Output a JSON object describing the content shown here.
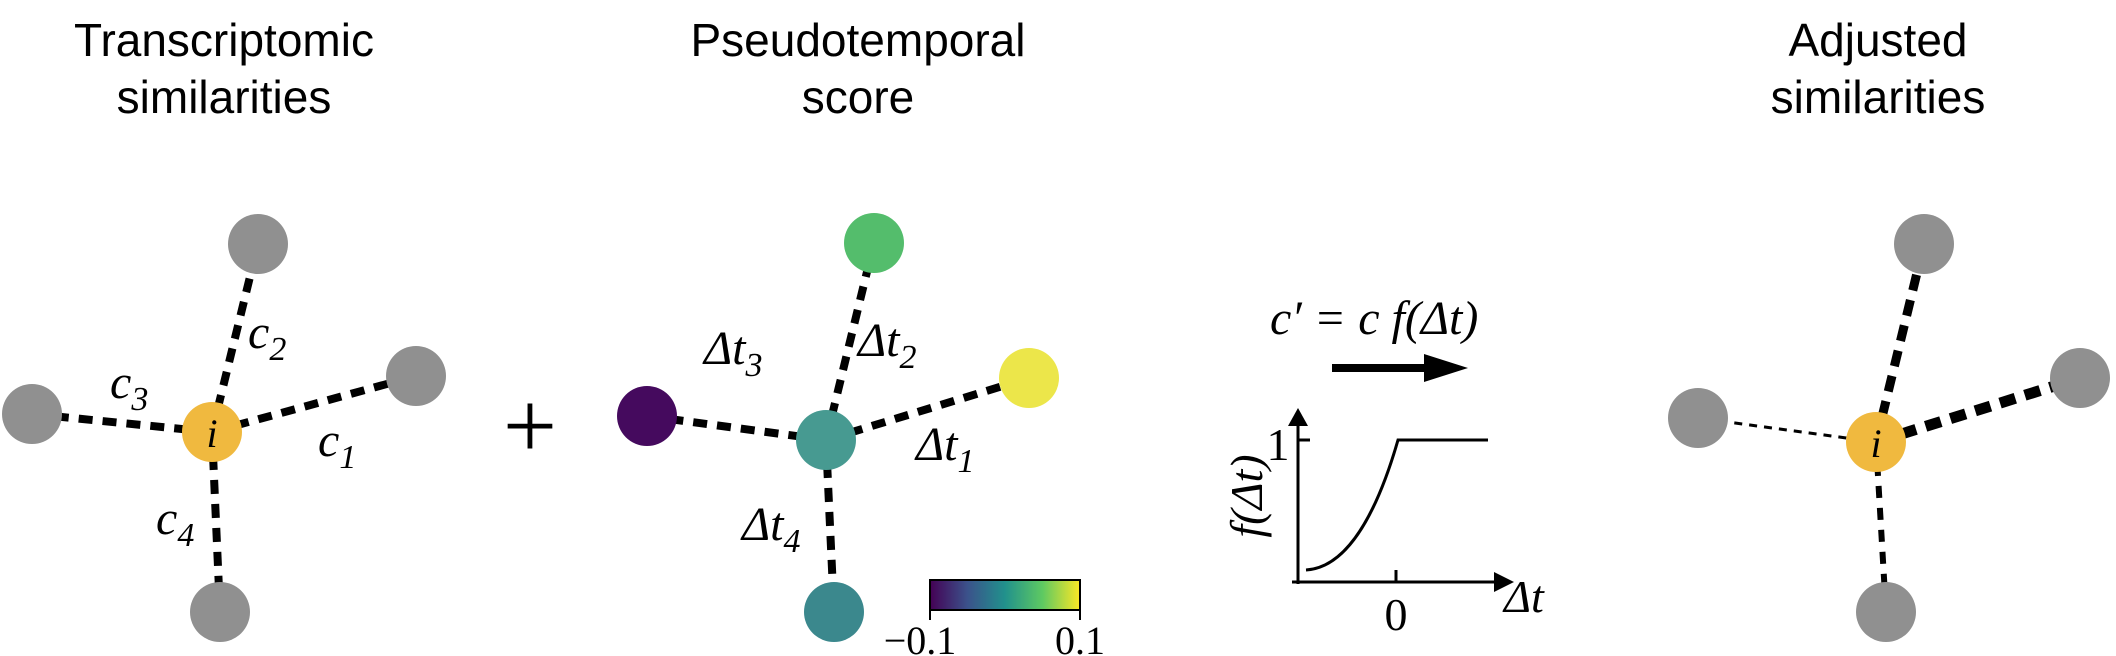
{
  "panels": {
    "transcriptomic": {
      "title_line1": "Transcriptomic",
      "title_line2": "similarities",
      "center_label": "i",
      "edges": [
        {
          "sym": "c",
          "sub": "1"
        },
        {
          "sym": "c",
          "sub": "2"
        },
        {
          "sym": "c",
          "sub": "3"
        },
        {
          "sym": "c",
          "sub": "4"
        }
      ]
    },
    "plus_sign": "+",
    "pseudotemporal": {
      "title_line1": "Pseudotemporal",
      "title_line2": "score",
      "edges": [
        {
          "sym": "Δt",
          "sub": "1"
        },
        {
          "sym": "Δt",
          "sub": "2"
        },
        {
          "sym": "Δt",
          "sub": "3"
        },
        {
          "sym": "Δt",
          "sub": "4"
        }
      ],
      "colorbar": {
        "min_label": "−0.1",
        "max_label": "0.1"
      }
    },
    "function": {
      "equation": "c′ = c f(Δt)",
      "y_label": "f(Δt)",
      "y_tick": "1",
      "x_tick": "0",
      "x_label": "Δt"
    },
    "adjusted": {
      "title_line1": "Adjusted",
      "title_line2": "similarities",
      "center_label": "i"
    }
  },
  "colors": {
    "neighbor_gray": "#909090",
    "center_orange": "#f0b93f",
    "viridis_green": "#54bd6c",
    "viridis_yellow": "#ece64a",
    "viridis_purple": "#450a5e",
    "viridis_teal_center": "#479a91",
    "viridis_teal_bottom": "#3b888d"
  }
}
